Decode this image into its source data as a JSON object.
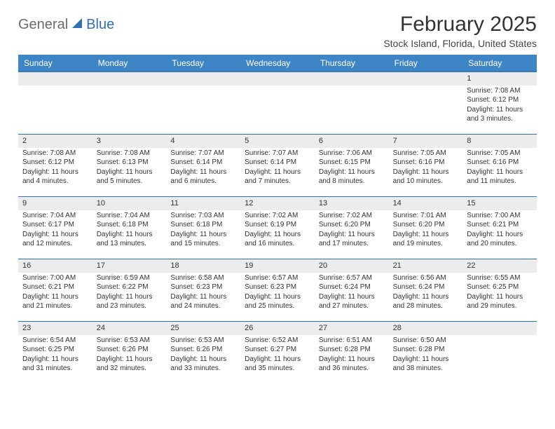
{
  "brand": {
    "part1": "General",
    "part2": "Blue",
    "accent_color": "#2f6fb3",
    "muted_color": "#7a7a7a"
  },
  "title": "February 2025",
  "location": "Stock Island, Florida, United States",
  "colors": {
    "header_bg": "#3e85c6",
    "header_text": "#ffffff",
    "row_divider": "#2f6fb3",
    "daynum_bg": "#ececec",
    "text": "#333333",
    "page_bg": "#ffffff"
  },
  "weekdays": [
    "Sunday",
    "Monday",
    "Tuesday",
    "Wednesday",
    "Thursday",
    "Friday",
    "Saturday"
  ],
  "weeks": [
    [
      {
        "n": "",
        "sunrise": "",
        "sunset": "",
        "daylight": ""
      },
      {
        "n": "",
        "sunrise": "",
        "sunset": "",
        "daylight": ""
      },
      {
        "n": "",
        "sunrise": "",
        "sunset": "",
        "daylight": ""
      },
      {
        "n": "",
        "sunrise": "",
        "sunset": "",
        "daylight": ""
      },
      {
        "n": "",
        "sunrise": "",
        "sunset": "",
        "daylight": ""
      },
      {
        "n": "",
        "sunrise": "",
        "sunset": "",
        "daylight": ""
      },
      {
        "n": "1",
        "sunrise": "Sunrise: 7:08 AM",
        "sunset": "Sunset: 6:12 PM",
        "daylight": "Daylight: 11 hours and 3 minutes."
      }
    ],
    [
      {
        "n": "2",
        "sunrise": "Sunrise: 7:08 AM",
        "sunset": "Sunset: 6:12 PM",
        "daylight": "Daylight: 11 hours and 4 minutes."
      },
      {
        "n": "3",
        "sunrise": "Sunrise: 7:08 AM",
        "sunset": "Sunset: 6:13 PM",
        "daylight": "Daylight: 11 hours and 5 minutes."
      },
      {
        "n": "4",
        "sunrise": "Sunrise: 7:07 AM",
        "sunset": "Sunset: 6:14 PM",
        "daylight": "Daylight: 11 hours and 6 minutes."
      },
      {
        "n": "5",
        "sunrise": "Sunrise: 7:07 AM",
        "sunset": "Sunset: 6:14 PM",
        "daylight": "Daylight: 11 hours and 7 minutes."
      },
      {
        "n": "6",
        "sunrise": "Sunrise: 7:06 AM",
        "sunset": "Sunset: 6:15 PM",
        "daylight": "Daylight: 11 hours and 8 minutes."
      },
      {
        "n": "7",
        "sunrise": "Sunrise: 7:05 AM",
        "sunset": "Sunset: 6:16 PM",
        "daylight": "Daylight: 11 hours and 10 minutes."
      },
      {
        "n": "8",
        "sunrise": "Sunrise: 7:05 AM",
        "sunset": "Sunset: 6:16 PM",
        "daylight": "Daylight: 11 hours and 11 minutes."
      }
    ],
    [
      {
        "n": "9",
        "sunrise": "Sunrise: 7:04 AM",
        "sunset": "Sunset: 6:17 PM",
        "daylight": "Daylight: 11 hours and 12 minutes."
      },
      {
        "n": "10",
        "sunrise": "Sunrise: 7:04 AM",
        "sunset": "Sunset: 6:18 PM",
        "daylight": "Daylight: 11 hours and 13 minutes."
      },
      {
        "n": "11",
        "sunrise": "Sunrise: 7:03 AM",
        "sunset": "Sunset: 6:18 PM",
        "daylight": "Daylight: 11 hours and 15 minutes."
      },
      {
        "n": "12",
        "sunrise": "Sunrise: 7:02 AM",
        "sunset": "Sunset: 6:19 PM",
        "daylight": "Daylight: 11 hours and 16 minutes."
      },
      {
        "n": "13",
        "sunrise": "Sunrise: 7:02 AM",
        "sunset": "Sunset: 6:20 PM",
        "daylight": "Daylight: 11 hours and 17 minutes."
      },
      {
        "n": "14",
        "sunrise": "Sunrise: 7:01 AM",
        "sunset": "Sunset: 6:20 PM",
        "daylight": "Daylight: 11 hours and 19 minutes."
      },
      {
        "n": "15",
        "sunrise": "Sunrise: 7:00 AM",
        "sunset": "Sunset: 6:21 PM",
        "daylight": "Daylight: 11 hours and 20 minutes."
      }
    ],
    [
      {
        "n": "16",
        "sunrise": "Sunrise: 7:00 AM",
        "sunset": "Sunset: 6:21 PM",
        "daylight": "Daylight: 11 hours and 21 minutes."
      },
      {
        "n": "17",
        "sunrise": "Sunrise: 6:59 AM",
        "sunset": "Sunset: 6:22 PM",
        "daylight": "Daylight: 11 hours and 23 minutes."
      },
      {
        "n": "18",
        "sunrise": "Sunrise: 6:58 AM",
        "sunset": "Sunset: 6:23 PM",
        "daylight": "Daylight: 11 hours and 24 minutes."
      },
      {
        "n": "19",
        "sunrise": "Sunrise: 6:57 AM",
        "sunset": "Sunset: 6:23 PM",
        "daylight": "Daylight: 11 hours and 25 minutes."
      },
      {
        "n": "20",
        "sunrise": "Sunrise: 6:57 AM",
        "sunset": "Sunset: 6:24 PM",
        "daylight": "Daylight: 11 hours and 27 minutes."
      },
      {
        "n": "21",
        "sunrise": "Sunrise: 6:56 AM",
        "sunset": "Sunset: 6:24 PM",
        "daylight": "Daylight: 11 hours and 28 minutes."
      },
      {
        "n": "22",
        "sunrise": "Sunrise: 6:55 AM",
        "sunset": "Sunset: 6:25 PM",
        "daylight": "Daylight: 11 hours and 29 minutes."
      }
    ],
    [
      {
        "n": "23",
        "sunrise": "Sunrise: 6:54 AM",
        "sunset": "Sunset: 6:25 PM",
        "daylight": "Daylight: 11 hours and 31 minutes."
      },
      {
        "n": "24",
        "sunrise": "Sunrise: 6:53 AM",
        "sunset": "Sunset: 6:26 PM",
        "daylight": "Daylight: 11 hours and 32 minutes."
      },
      {
        "n": "25",
        "sunrise": "Sunrise: 6:53 AM",
        "sunset": "Sunset: 6:26 PM",
        "daylight": "Daylight: 11 hours and 33 minutes."
      },
      {
        "n": "26",
        "sunrise": "Sunrise: 6:52 AM",
        "sunset": "Sunset: 6:27 PM",
        "daylight": "Daylight: 11 hours and 35 minutes."
      },
      {
        "n": "27",
        "sunrise": "Sunrise: 6:51 AM",
        "sunset": "Sunset: 6:28 PM",
        "daylight": "Daylight: 11 hours and 36 minutes."
      },
      {
        "n": "28",
        "sunrise": "Sunrise: 6:50 AM",
        "sunset": "Sunset: 6:28 PM",
        "daylight": "Daylight: 11 hours and 38 minutes."
      },
      {
        "n": "",
        "sunrise": "",
        "sunset": "",
        "daylight": ""
      }
    ]
  ]
}
